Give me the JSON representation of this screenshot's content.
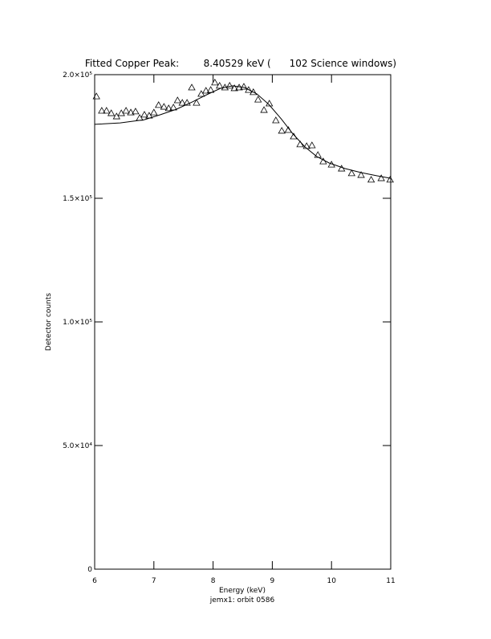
{
  "chart_data": {
    "type": "scatter",
    "title": "Fitted Copper Peak:        8.40529 keV (      102 Science windows)",
    "xlabel": "Energy (keV)",
    "ylabel": "Detector counts",
    "footer": "jemx1: orbit 0586",
    "xlim": [
      6,
      11
    ],
    "xticks": [
      6,
      7,
      8,
      9,
      10,
      11
    ],
    "ylim": [
      0,
      200000
    ],
    "yticks": [
      0,
      {
        "value": 50000,
        "label": "5.0×10⁴"
      },
      {
        "value": 100000,
        "label": "1.0×10⁵"
      },
      {
        "value": 150000,
        "label": "1.5×10⁵"
      },
      {
        "value": 200000,
        "label": "2.0×10⁵"
      }
    ],
    "color": "#000000",
    "series": [
      {
        "style": "triangle",
        "x": [
          6.03,
          6.12,
          6.2,
          6.28,
          6.37,
          6.45,
          6.53,
          6.61,
          6.69,
          6.76,
          6.84,
          6.92,
          7.0,
          7.08,
          7.17,
          7.25,
          7.33,
          7.4,
          7.48,
          7.56,
          7.64,
          7.72,
          7.8,
          7.88,
          7.96,
          8.03,
          8.11,
          8.2,
          8.28,
          8.36,
          8.44,
          8.52,
          8.6,
          8.68,
          8.76,
          8.86,
          8.95,
          9.06,
          9.16,
          9.27,
          9.36,
          9.47,
          9.58,
          9.67,
          9.77,
          9.86,
          10.0,
          10.17,
          10.34,
          10.5,
          10.67,
          10.84,
          10.99
        ],
        "values": [
          191200,
          185400,
          185400,
          184400,
          183100,
          184400,
          185400,
          184700,
          185100,
          182500,
          183800,
          183400,
          184700,
          187700,
          187000,
          186400,
          186700,
          189600,
          188600,
          188600,
          194800,
          188600,
          192200,
          193500,
          193800,
          196800,
          195500,
          194800,
          195500,
          194500,
          194800,
          195100,
          193800,
          192900,
          189900,
          185700,
          188300,
          181500,
          177300,
          177600,
          175000,
          171800,
          171100,
          171400,
          167500,
          164900,
          163600,
          162000,
          160100,
          159400,
          157500,
          158100,
          157500
        ]
      },
      {
        "style": "line",
        "x": [
          6.0,
          6.43,
          6.84,
          7.11,
          7.38,
          7.65,
          7.92,
          8.13,
          8.33,
          8.53,
          8.74,
          8.94,
          9.15,
          9.35,
          9.55,
          9.75,
          9.96,
          10.23,
          10.5,
          10.77,
          11.0
        ],
        "values": [
          179900,
          180500,
          181800,
          183800,
          186000,
          189000,
          192200,
          194500,
          195500,
          194800,
          192200,
          188000,
          182100,
          176000,
          170800,
          166900,
          164300,
          162000,
          160400,
          159100,
          158100
        ]
      }
    ]
  }
}
